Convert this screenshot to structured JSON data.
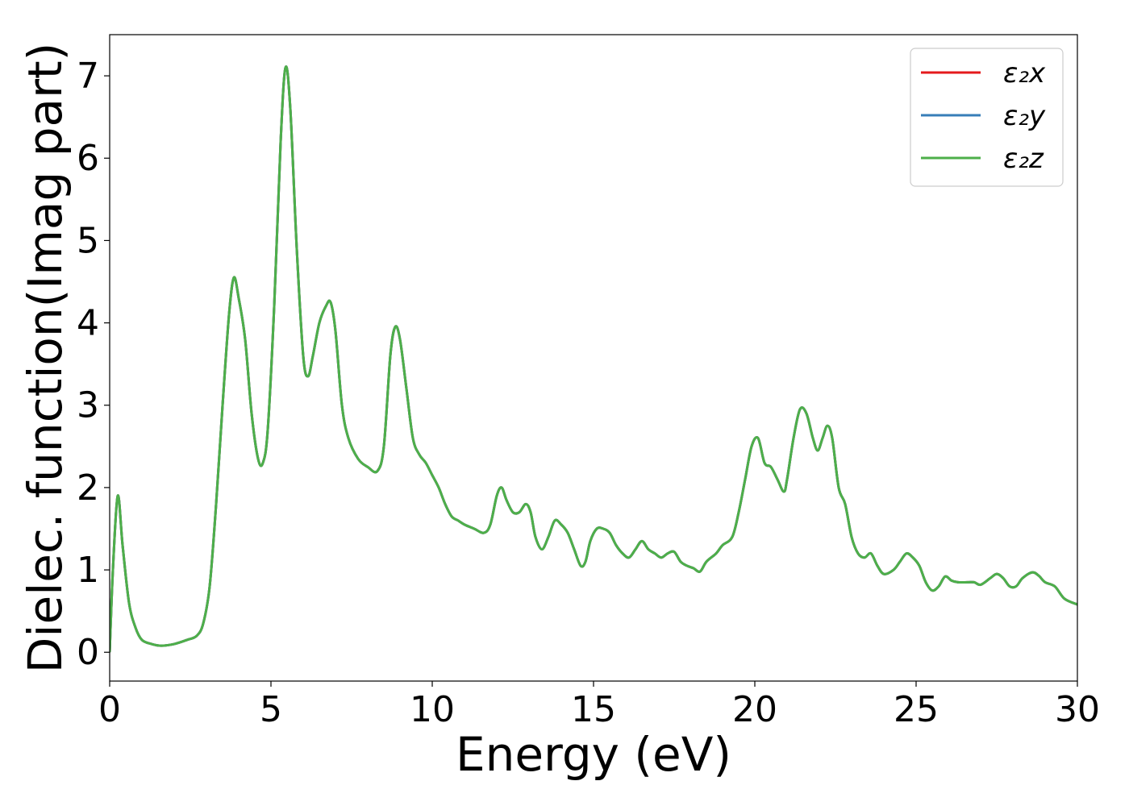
{
  "chart_data": {
    "type": "line",
    "title": "",
    "xlabel": "Energy (eV)",
    "ylabel": "Dielec. function(Imag part)",
    "xlim": [
      0,
      30
    ],
    "ylim": [
      -0.35,
      7.5
    ],
    "xticks": [
      0,
      5,
      10,
      15,
      20,
      25,
      30
    ],
    "yticks": [
      0,
      1,
      2,
      3,
      4,
      5,
      6,
      7
    ],
    "grid": false,
    "legend_position": "top-right",
    "x": [
      0,
      0.1,
      0.25,
      0.4,
      0.6,
      0.8,
      1.0,
      1.3,
      1.6,
      2.0,
      2.4,
      2.7,
      2.9,
      3.1,
      3.3,
      3.5,
      3.7,
      3.85,
      4.0,
      4.2,
      4.4,
      4.6,
      4.75,
      4.9,
      5.1,
      5.3,
      5.45,
      5.6,
      5.8,
      6.0,
      6.15,
      6.3,
      6.5,
      6.7,
      6.85,
      7.0,
      7.2,
      7.4,
      7.7,
      8.0,
      8.3,
      8.5,
      8.7,
      8.85,
      9.0,
      9.2,
      9.4,
      9.6,
      9.8,
      10.0,
      10.2,
      10.4,
      10.6,
      10.8,
      11.0,
      11.3,
      11.6,
      11.8,
      12.0,
      12.15,
      12.3,
      12.5,
      12.7,
      12.9,
      13.05,
      13.2,
      13.4,
      13.6,
      13.8,
      14.0,
      14.2,
      14.4,
      14.6,
      14.75,
      14.9,
      15.1,
      15.3,
      15.5,
      15.7,
      15.9,
      16.1,
      16.3,
      16.5,
      16.7,
      16.9,
      17.1,
      17.3,
      17.5,
      17.7,
      17.9,
      18.1,
      18.3,
      18.5,
      18.8,
      19.0,
      19.3,
      19.5,
      19.7,
      19.9,
      20.1,
      20.3,
      20.5,
      20.7,
      20.9,
      21.0,
      21.2,
      21.4,
      21.6,
      21.8,
      21.95,
      22.1,
      22.25,
      22.4,
      22.6,
      22.8,
      23.0,
      23.2,
      23.4,
      23.6,
      23.8,
      24.0,
      24.3,
      24.5,
      24.7,
      24.9,
      25.1,
      25.3,
      25.5,
      25.7,
      25.9,
      26.1,
      26.3,
      26.6,
      26.8,
      27.0,
      27.3,
      27.5,
      27.7,
      27.9,
      28.1,
      28.3,
      28.6,
      28.8,
      29.0,
      29.3,
      29.6,
      30.0
    ],
    "series": [
      {
        "name": "ε₂x",
        "color": "#e41a1c",
        "values": [
          0.0,
          1.0,
          1.9,
          1.3,
          0.6,
          0.3,
          0.15,
          0.1,
          0.08,
          0.1,
          0.15,
          0.2,
          0.35,
          0.8,
          1.8,
          3.0,
          4.1,
          4.55,
          4.3,
          3.8,
          2.9,
          2.35,
          2.3,
          2.7,
          4.2,
          6.2,
          7.1,
          6.6,
          4.9,
          3.6,
          3.35,
          3.6,
          4.0,
          4.2,
          4.25,
          3.9,
          3.0,
          2.6,
          2.35,
          2.25,
          2.2,
          2.5,
          3.6,
          3.95,
          3.8,
          3.2,
          2.6,
          2.4,
          2.3,
          2.15,
          2.0,
          1.8,
          1.65,
          1.6,
          1.55,
          1.5,
          1.45,
          1.55,
          1.9,
          2.0,
          1.85,
          1.7,
          1.7,
          1.8,
          1.7,
          1.4,
          1.25,
          1.4,
          1.6,
          1.55,
          1.45,
          1.25,
          1.05,
          1.1,
          1.35,
          1.5,
          1.5,
          1.45,
          1.3,
          1.2,
          1.15,
          1.25,
          1.35,
          1.25,
          1.2,
          1.15,
          1.2,
          1.22,
          1.1,
          1.05,
          1.02,
          0.98,
          1.1,
          1.2,
          1.3,
          1.4,
          1.7,
          2.1,
          2.5,
          2.6,
          2.3,
          2.25,
          2.1,
          1.95,
          2.1,
          2.6,
          2.95,
          2.9,
          2.6,
          2.45,
          2.6,
          2.75,
          2.6,
          2.0,
          1.8,
          1.4,
          1.2,
          1.15,
          1.2,
          1.05,
          0.95,
          1.0,
          1.1,
          1.2,
          1.15,
          1.05,
          0.85,
          0.75,
          0.8,
          0.92,
          0.87,
          0.85,
          0.85,
          0.85,
          0.82,
          0.9,
          0.95,
          0.9,
          0.8,
          0.8,
          0.9,
          0.97,
          0.93,
          0.85,
          0.8,
          0.65,
          0.58
        ]
      },
      {
        "name": "ε₂y",
        "color": "#377eb8",
        "values": [
          0.0,
          1.0,
          1.9,
          1.3,
          0.6,
          0.3,
          0.15,
          0.1,
          0.08,
          0.1,
          0.15,
          0.2,
          0.35,
          0.8,
          1.8,
          3.0,
          4.1,
          4.55,
          4.3,
          3.8,
          2.9,
          2.35,
          2.3,
          2.7,
          4.2,
          6.2,
          7.1,
          6.6,
          4.9,
          3.6,
          3.35,
          3.6,
          4.0,
          4.2,
          4.25,
          3.9,
          3.0,
          2.6,
          2.35,
          2.25,
          2.2,
          2.5,
          3.6,
          3.95,
          3.8,
          3.2,
          2.6,
          2.4,
          2.3,
          2.15,
          2.0,
          1.8,
          1.65,
          1.6,
          1.55,
          1.5,
          1.45,
          1.55,
          1.9,
          2.0,
          1.85,
          1.7,
          1.7,
          1.8,
          1.7,
          1.4,
          1.25,
          1.4,
          1.6,
          1.55,
          1.45,
          1.25,
          1.05,
          1.1,
          1.35,
          1.5,
          1.5,
          1.45,
          1.3,
          1.2,
          1.15,
          1.25,
          1.35,
          1.25,
          1.2,
          1.15,
          1.2,
          1.22,
          1.1,
          1.05,
          1.02,
          0.98,
          1.1,
          1.2,
          1.3,
          1.4,
          1.7,
          2.1,
          2.5,
          2.6,
          2.3,
          2.25,
          2.1,
          1.95,
          2.1,
          2.6,
          2.95,
          2.9,
          2.6,
          2.45,
          2.6,
          2.75,
          2.6,
          2.0,
          1.8,
          1.4,
          1.2,
          1.15,
          1.2,
          1.05,
          0.95,
          1.0,
          1.1,
          1.2,
          1.15,
          1.05,
          0.85,
          0.75,
          0.8,
          0.92,
          0.87,
          0.85,
          0.85,
          0.85,
          0.82,
          0.9,
          0.95,
          0.9,
          0.8,
          0.8,
          0.9,
          0.97,
          0.93,
          0.85,
          0.8,
          0.65,
          0.58
        ]
      },
      {
        "name": "ε₂z",
        "color": "#4daf4a",
        "values": [
          0.0,
          1.0,
          1.9,
          1.3,
          0.6,
          0.3,
          0.15,
          0.1,
          0.08,
          0.1,
          0.15,
          0.2,
          0.35,
          0.8,
          1.8,
          3.0,
          4.1,
          4.55,
          4.3,
          3.8,
          2.9,
          2.35,
          2.3,
          2.7,
          4.2,
          6.2,
          7.1,
          6.6,
          4.9,
          3.6,
          3.35,
          3.6,
          4.0,
          4.2,
          4.25,
          3.9,
          3.0,
          2.6,
          2.35,
          2.25,
          2.2,
          2.5,
          3.6,
          3.95,
          3.8,
          3.2,
          2.6,
          2.4,
          2.3,
          2.15,
          2.0,
          1.8,
          1.65,
          1.6,
          1.55,
          1.5,
          1.45,
          1.55,
          1.9,
          2.0,
          1.85,
          1.7,
          1.7,
          1.8,
          1.7,
          1.4,
          1.25,
          1.4,
          1.6,
          1.55,
          1.45,
          1.25,
          1.05,
          1.1,
          1.35,
          1.5,
          1.5,
          1.45,
          1.3,
          1.2,
          1.15,
          1.25,
          1.35,
          1.25,
          1.2,
          1.15,
          1.2,
          1.22,
          1.1,
          1.05,
          1.02,
          0.98,
          1.1,
          1.2,
          1.3,
          1.4,
          1.7,
          2.1,
          2.5,
          2.6,
          2.3,
          2.25,
          2.1,
          1.95,
          2.1,
          2.6,
          2.95,
          2.9,
          2.6,
          2.45,
          2.6,
          2.75,
          2.6,
          2.0,
          1.8,
          1.4,
          1.2,
          1.15,
          1.2,
          1.05,
          0.95,
          1.0,
          1.1,
          1.2,
          1.15,
          1.05,
          0.85,
          0.75,
          0.8,
          0.92,
          0.87,
          0.85,
          0.85,
          0.85,
          0.82,
          0.9,
          0.95,
          0.9,
          0.8,
          0.8,
          0.9,
          0.97,
          0.93,
          0.85,
          0.8,
          0.65,
          0.58
        ]
      }
    ]
  }
}
